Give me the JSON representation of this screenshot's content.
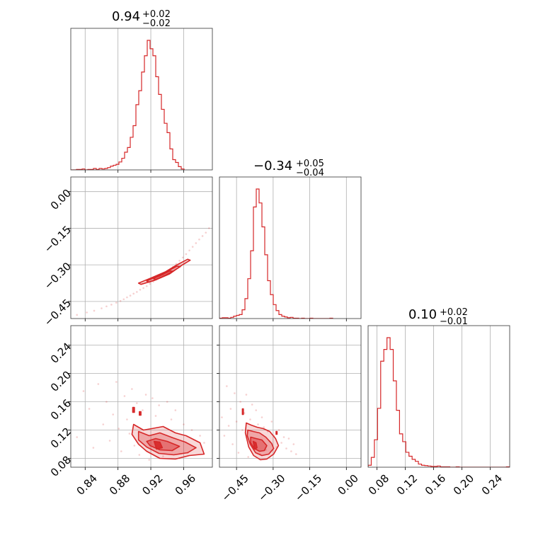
{
  "chart_data": {
    "type": "corner",
    "color": "#d62728",
    "grid": true,
    "parameters": [
      {
        "range": [
          0.8225,
          0.995
        ],
        "ticks": [
          0.84,
          0.88,
          0.92,
          0.96
        ],
        "tick_labels": [
          "0.84",
          "0.88",
          "0.92",
          "0.96"
        ]
      },
      {
        "range": [
          -0.52,
          0.06
        ],
        "ticks": [
          -0.45,
          -0.3,
          -0.15,
          0.0
        ],
        "tick_labels": [
          "−0.45",
          "−0.30",
          "−0.15",
          "0.00"
        ]
      },
      {
        "range": [
          0.0675,
          0.2675
        ],
        "ticks": [
          0.08,
          0.12,
          0.16,
          0.2,
          0.24
        ],
        "tick_labels": [
          "0.08",
          "0.12",
          "0.16",
          "0.20",
          "0.24"
        ]
      }
    ],
    "titles": [
      {
        "main": "0.94",
        "upper": "+0.02",
        "lower": "−0.02"
      },
      {
        "main": "−0.34",
        "upper": "+0.05",
        "lower": "−0.04"
      },
      {
        "main": "0.10",
        "upper": "+0.02",
        "lower": "−0.01"
      }
    ],
    "histograms": [
      {
        "edges_start": 0.8225,
        "bin_width": 0.00345,
        "counts": [
          0,
          0,
          1,
          1,
          2,
          0,
          1,
          1,
          3,
          1,
          3,
          2,
          3,
          5,
          8,
          10,
          12,
          17,
          25,
          38,
          48,
          70,
          95,
          140,
          170,
          210,
          245,
          278,
          260,
          245,
          200,
          162,
          130,
          100,
          80,
          45,
          22,
          16,
          7,
          2
        ]
      },
      {
        "edges_start": -0.52,
        "bin_width": 0.0116,
        "counts": [
          1,
          2,
          2,
          1,
          3,
          6,
          8,
          10,
          22,
          50,
          100,
          170,
          280,
          325,
          290,
          230,
          160,
          95,
          60,
          35,
          20,
          10,
          6,
          4,
          2,
          3,
          1,
          1,
          0,
          1,
          0,
          0,
          1,
          0,
          0,
          0,
          0,
          0,
          0,
          1
        ]
      },
      {
        "edges_start": 0.0675,
        "bin_width": 0.00444,
        "counts": [
          5,
          25,
          70,
          150,
          270,
          300,
          330,
          300,
          220,
          145,
          85,
          65,
          38,
          28,
          20,
          15,
          8,
          5,
          4,
          3,
          2,
          2,
          3,
          1,
          1,
          1,
          0,
          0,
          1,
          0,
          0,
          0,
          0,
          0,
          0,
          0,
          0,
          0,
          0,
          0,
          0,
          0,
          0,
          0,
          1
        ]
      }
    ],
    "pairs": [
      {
        "x_param": 0,
        "y_param": 1,
        "scatter": [
          [
            0.83,
            -0.505
          ],
          [
            0.842,
            -0.495
          ],
          [
            0.851,
            -0.488
          ],
          [
            0.86,
            -0.478
          ],
          [
            0.866,
            -0.47
          ],
          [
            0.872,
            -0.463
          ],
          [
            0.878,
            -0.455
          ],
          [
            0.883,
            -0.448
          ],
          [
            0.887,
            -0.441
          ],
          [
            0.891,
            -0.433
          ],
          [
            0.895,
            -0.426
          ],
          [
            0.899,
            -0.418
          ],
          [
            0.903,
            -0.411
          ],
          [
            0.907,
            -0.402
          ],
          [
            0.911,
            -0.395
          ],
          [
            0.915,
            -0.387
          ],
          [
            0.919,
            -0.378
          ],
          [
            0.923,
            -0.369
          ],
          [
            0.927,
            -0.36
          ],
          [
            0.931,
            -0.35
          ],
          [
            0.935,
            -0.341
          ],
          [
            0.939,
            -0.331
          ],
          [
            0.943,
            -0.32
          ],
          [
            0.947,
            -0.308
          ],
          [
            0.951,
            -0.296
          ],
          [
            0.955,
            -0.283
          ],
          [
            0.959,
            -0.27
          ],
          [
            0.963,
            -0.256
          ],
          [
            0.967,
            -0.241
          ],
          [
            0.971,
            -0.226
          ],
          [
            0.975,
            -0.211
          ],
          [
            0.979,
            -0.196
          ],
          [
            0.983,
            -0.182
          ],
          [
            0.987,
            -0.168
          ],
          [
            0.991,
            -0.15
          ]
        ],
        "contours": [
          [
            [
              0.908,
              -0.38
            ],
            [
              0.925,
              -0.363
            ],
            [
              0.943,
              -0.337
            ],
            [
              0.958,
              -0.301
            ],
            [
              0.968,
              -0.281
            ],
            [
              0.965,
              -0.277
            ],
            [
              0.952,
              -0.3
            ],
            [
              0.938,
              -0.328
            ],
            [
              0.92,
              -0.354
            ],
            [
              0.905,
              -0.375
            ]
          ],
          [
            [
              0.918,
              -0.371
            ],
            [
              0.932,
              -0.352
            ],
            [
              0.946,
              -0.328
            ],
            [
              0.956,
              -0.307
            ],
            [
              0.952,
              -0.305
            ],
            [
              0.94,
              -0.327
            ],
            [
              0.927,
              -0.348
            ],
            [
              0.915,
              -0.366
            ]
          ],
          [
            [
              0.926,
              -0.36
            ],
            [
              0.938,
              -0.343
            ],
            [
              0.947,
              -0.326
            ],
            [
              0.943,
              -0.325
            ],
            [
              0.933,
              -0.342
            ],
            [
              0.923,
              -0.356
            ]
          ]
        ]
      },
      {
        "x_param": 0,
        "y_param": 2,
        "scatter": [
          [
            0.83,
            0.11
          ],
          [
            0.838,
            0.175
          ],
          [
            0.845,
            0.15
          ],
          [
            0.85,
            0.095
          ],
          [
            0.856,
            0.185
          ],
          [
            0.862,
            0.128
          ],
          [
            0.866,
            0.16
          ],
          [
            0.87,
            0.105
          ],
          [
            0.874,
            0.142
          ],
          [
            0.878,
            0.188
          ],
          [
            0.881,
            0.122
          ],
          [
            0.884,
            0.09
          ],
          [
            0.888,
            0.168
          ],
          [
            0.891,
            0.135
          ],
          [
            0.894,
            0.115
          ],
          [
            0.897,
            0.178
          ],
          [
            0.9,
            0.098
          ],
          [
            0.903,
            0.158
          ],
          [
            0.906,
            0.085
          ],
          [
            0.91,
            0.148
          ],
          [
            0.914,
            0.17
          ],
          [
            0.918,
            0.078
          ],
          [
            0.922,
            0.165
          ],
          [
            0.926,
            0.14
          ],
          [
            0.93,
            0.155
          ],
          [
            0.935,
            0.083
          ],
          [
            0.94,
            0.16
          ],
          [
            0.945,
            0.135
          ],
          [
            0.95,
            0.148
          ],
          [
            0.955,
            0.08
          ],
          [
            0.96,
            0.128
          ],
          [
            0.965,
            0.088
          ],
          [
            0.97,
            0.12
          ],
          [
            0.975,
            0.095
          ],
          [
            0.98,
            0.112
          ],
          [
            0.985,
            0.102
          ]
        ],
        "contours": [
          [
            [
              0.899,
              0.128
            ],
            [
              0.911,
              0.12
            ],
            [
              0.921,
              0.122
            ],
            [
              0.935,
              0.125
            ],
            [
              0.95,
              0.116
            ],
            [
              0.963,
              0.112
            ],
            [
              0.98,
              0.102
            ],
            [
              0.985,
              0.086
            ],
            [
              0.967,
              0.084
            ],
            [
              0.95,
              0.079
            ],
            [
              0.931,
              0.08
            ],
            [
              0.915,
              0.09
            ],
            [
              0.905,
              0.1
            ],
            [
              0.897,
              0.114
            ]
          ],
          [
            [
              0.905,
              0.118
            ],
            [
              0.918,
              0.112
            ],
            [
              0.931,
              0.116
            ],
            [
              0.947,
              0.109
            ],
            [
              0.962,
              0.103
            ],
            [
              0.975,
              0.095
            ],
            [
              0.965,
              0.088
            ],
            [
              0.948,
              0.085
            ],
            [
              0.93,
              0.087
            ],
            [
              0.915,
              0.096
            ],
            [
              0.905,
              0.106
            ]
          ],
          [
            [
              0.915,
              0.104
            ],
            [
              0.926,
              0.108
            ],
            [
              0.94,
              0.104
            ],
            [
              0.955,
              0.097
            ],
            [
              0.946,
              0.091
            ],
            [
              0.931,
              0.092
            ],
            [
              0.919,
              0.098
            ]
          ],
          [
            [
              0.924,
              0.104
            ],
            [
              0.931,
              0.103
            ],
            [
              0.934,
              0.095
            ],
            [
              0.927,
              0.093
            ]
          ],
          [
            [
              0.898,
              0.152
            ],
            [
              0.9,
              0.152
            ],
            [
              0.9,
              0.145
            ],
            [
              0.898,
              0.145
            ]
          ],
          [
            [
              0.906,
              0.146
            ],
            [
              0.908,
              0.146
            ],
            [
              0.908,
              0.141
            ],
            [
              0.906,
              0.141
            ]
          ]
        ]
      },
      {
        "x_param": 1,
        "y_param": 2,
        "scatter": [
          [
            -0.51,
            0.138
          ],
          [
            -0.5,
            0.112
          ],
          [
            -0.49,
            0.182
          ],
          [
            -0.482,
            0.126
          ],
          [
            -0.474,
            0.15
          ],
          [
            -0.466,
            0.1
          ],
          [
            -0.458,
            0.172
          ],
          [
            -0.45,
            0.132
          ],
          [
            -0.442,
            0.088
          ],
          [
            -0.434,
            0.16
          ],
          [
            -0.426,
            0.12
          ],
          [
            -0.418,
            0.144
          ],
          [
            -0.41,
            0.17
          ],
          [
            -0.402,
            0.082
          ],
          [
            -0.394,
            0.135
          ],
          [
            -0.386,
            0.156
          ],
          [
            -0.378,
            0.098
          ],
          [
            -0.37,
            0.148
          ],
          [
            -0.362,
            0.128
          ],
          [
            -0.354,
            0.086
          ],
          [
            -0.346,
            0.138
          ],
          [
            -0.338,
            0.124
          ],
          [
            -0.33,
            0.092
          ],
          [
            -0.322,
            0.118
          ],
          [
            -0.314,
            0.104
          ],
          [
            -0.306,
            0.132
          ],
          [
            -0.296,
            0.112
          ],
          [
            -0.286,
            0.096
          ],
          [
            -0.276,
            0.12
          ],
          [
            -0.266,
            0.102
          ],
          [
            -0.256,
            0.11
          ],
          [
            -0.246,
            0.094
          ],
          [
            -0.236,
            0.108
          ],
          [
            -0.226,
            0.09
          ],
          [
            -0.216,
            0.1
          ],
          [
            -0.206,
            0.086
          ]
        ],
        "contours": [
          [
            [
              -0.41,
              0.13
            ],
            [
              -0.39,
              0.127
            ],
            [
              -0.366,
              0.124
            ],
            [
              -0.34,
              0.122
            ],
            [
              -0.314,
              0.118
            ],
            [
              -0.29,
              0.108
            ],
            [
              -0.278,
              0.098
            ],
            [
              -0.298,
              0.086
            ],
            [
              -0.326,
              0.079
            ],
            [
              -0.352,
              0.078
            ],
            [
              -0.38,
              0.084
            ],
            [
              -0.4,
              0.096
            ],
            [
              -0.414,
              0.116
            ]
          ],
          [
            [
              -0.404,
              0.12
            ],
            [
              -0.382,
              0.118
            ],
            [
              -0.356,
              0.116
            ],
            [
              -0.33,
              0.11
            ],
            [
              -0.306,
              0.101
            ],
            [
              -0.298,
              0.094
            ],
            [
              -0.318,
              0.086
            ],
            [
              -0.346,
              0.084
            ],
            [
              -0.372,
              0.088
            ],
            [
              -0.394,
              0.1
            ],
            [
              -0.406,
              0.112
            ]
          ],
          [
            [
              -0.392,
              0.11
            ],
            [
              -0.37,
              0.108
            ],
            [
              -0.346,
              0.106
            ],
            [
              -0.326,
              0.098
            ],
            [
              -0.336,
              0.091
            ],
            [
              -0.356,
              0.09
            ],
            [
              -0.378,
              0.094
            ],
            [
              -0.392,
              0.102
            ]
          ],
          [
            [
              -0.382,
              0.104
            ],
            [
              -0.37,
              0.102
            ],
            [
              -0.366,
              0.095
            ],
            [
              -0.376,
              0.093
            ]
          ],
          [
            [
              -0.426,
              0.15
            ],
            [
              -0.422,
              0.15
            ],
            [
              -0.422,
              0.142
            ],
            [
              -0.426,
              0.142
            ]
          ],
          [
            [
              -0.288,
              0.118
            ],
            [
              -0.284,
              0.118
            ],
            [
              -0.284,
              0.114
            ],
            [
              -0.288,
              0.114
            ]
          ]
        ]
      }
    ]
  }
}
